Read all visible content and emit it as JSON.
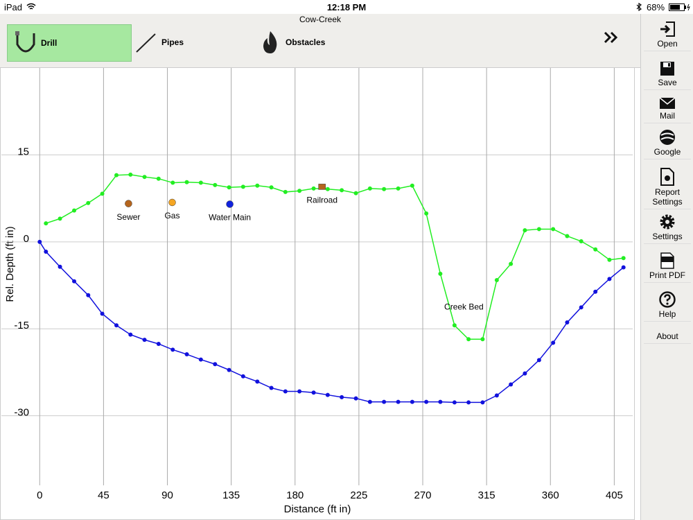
{
  "status_bar": {
    "device": "iPad",
    "time": "12:18 PM",
    "battery": "68%"
  },
  "header": {
    "title": "Cow-Creek"
  },
  "toolbar": {
    "buttons": [
      "Drill",
      "Pipes",
      "Obstacles"
    ]
  },
  "sidebar": {
    "items": [
      "Open",
      "Save",
      "Mail",
      "Google",
      "Report Settings",
      "Settings",
      "Print PDF",
      "Help",
      "About"
    ]
  },
  "chart_data": {
    "type": "line",
    "xlabel": "Distance (ft in)",
    "ylabel": "Rel. Depth (ft in)",
    "xlim": [
      -27,
      418
    ],
    "ylim": [
      -42,
      30
    ],
    "xticks": [
      0,
      45,
      90,
      135,
      180,
      225,
      270,
      315,
      360,
      405
    ],
    "yticks": [
      -30,
      -15,
      0,
      15
    ],
    "grid": true,
    "series": [
      {
        "color": "#22ee22",
        "x": [
          4.4,
          14.3,
          24.3,
          34.2,
          44.1,
          54.1,
          64.0,
          73.9,
          83.8,
          93.8,
          103.7,
          113.6,
          123.6,
          133.5,
          143.4,
          153.4,
          163.3,
          173.2,
          183.1,
          193.1,
          203.0,
          212.9,
          222.9,
          232.8,
          242.7,
          252.7,
          262.6,
          272.5,
          282.4,
          292.4,
          302.3,
          312.2,
          322.2,
          332.1,
          342.0,
          352.0,
          361.9,
          371.8,
          381.7,
          391.7,
          401.6,
          411.5
        ],
        "values": [
          3.2,
          4.0,
          5.4,
          6.7,
          8.3,
          11.5,
          11.6,
          11.2,
          10.9,
          10.2,
          10.3,
          10.2,
          9.8,
          9.4,
          9.5,
          9.7,
          9.4,
          8.6,
          8.8,
          9.2,
          9.1,
          8.9,
          8.4,
          9.2,
          9.1,
          9.2,
          9.7,
          4.9,
          -5.5,
          -14.4,
          -16.8,
          -16.8,
          -6.6,
          -3.8,
          2.0,
          2.2,
          2.2,
          1.0,
          0.1,
          -1.3,
          -3.1,
          -2.8
        ]
      },
      {
        "color": "#1111dd",
        "x": [
          0,
          4.4,
          14.3,
          24.3,
          34.2,
          44.1,
          54.1,
          64.0,
          73.9,
          83.8,
          93.8,
          103.7,
          113.6,
          123.6,
          133.5,
          143.4,
          153.4,
          163.3,
          173.2,
          183.1,
          193.1,
          203.0,
          212.9,
          222.9,
          232.8,
          242.7,
          252.7,
          262.6,
          272.5,
          282.4,
          292.4,
          302.3,
          312.2,
          322.2,
          332.1,
          342.0,
          352.0,
          361.9,
          371.8,
          381.7,
          391.7,
          401.6,
          411.5
        ],
        "values": [
          0,
          -1.7,
          -4.3,
          -6.8,
          -9.2,
          -12.4,
          -14.4,
          -16.0,
          -16.9,
          -17.6,
          -18.6,
          -19.4,
          -20.3,
          -21.1,
          -22.1,
          -23.2,
          -24.1,
          -25.2,
          -25.8,
          -25.8,
          -26.0,
          -26.4,
          -26.8,
          -27.0,
          -27.6,
          -27.6,
          -27.6,
          -27.6,
          -27.6,
          -27.6,
          -27.7,
          -27.7,
          -27.7,
          -26.5,
          -24.6,
          -22.7,
          -20.4,
          -17.4,
          -13.9,
          -11.3,
          -8.6,
          -6.4,
          -4.4
        ]
      }
    ],
    "obstacles": [
      {
        "name": "Sewer",
        "x": 62.6,
        "y": 6.6,
        "color": "#b5651d",
        "marker": "circle"
      },
      {
        "name": "Gas",
        "x": 93.4,
        "y": 6.8,
        "color": "#f5a623",
        "marker": "circle"
      },
      {
        "name": "Water Main",
        "x": 134,
        "y": 6.5,
        "color": "#1122dd",
        "marker": "circle"
      },
      {
        "name": "Railroad",
        "x": 199,
        "y": 9.5,
        "color": "#b5651d",
        "marker": "square"
      }
    ],
    "annotations": [
      {
        "text": "Creek Bed",
        "x": 299,
        "y": -11.3
      }
    ]
  }
}
